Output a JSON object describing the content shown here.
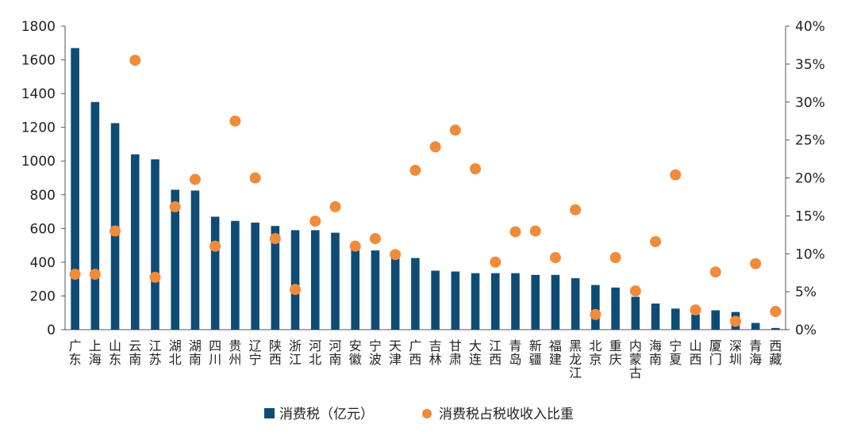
{
  "chart_data": {
    "type": "bar",
    "categories": [
      "广东",
      "上海",
      "山东",
      "云南",
      "江苏",
      "湖北",
      "湖南",
      "四川",
      "贵州",
      "辽宁",
      "陕西",
      "浙江",
      "河北",
      "河南",
      "安徽",
      "宁波",
      "天津",
      "广西",
      "吉林",
      "甘肃",
      "大连",
      "江西",
      "青岛",
      "新疆",
      "福建",
      "黑龙江",
      "北京",
      "重庆",
      "内蒙古",
      "海南",
      "宁夏",
      "山西",
      "厦门",
      "深圳",
      "青海",
      "西藏"
    ],
    "series": [
      {
        "name": "消费税（亿元）",
        "kind": "bar",
        "axis": "left",
        "color": "#0f4c75",
        "values": [
          1670,
          1350,
          1225,
          1040,
          1010,
          830,
          825,
          670,
          645,
          635,
          615,
          590,
          590,
          575,
          490,
          470,
          430,
          425,
          350,
          345,
          335,
          335,
          335,
          325,
          325,
          305,
          265,
          250,
          195,
          155,
          125,
          90,
          115,
          105,
          40,
          10
        ]
      },
      {
        "name": "消费税占税收收入比重",
        "kind": "scatter",
        "axis": "right",
        "color": "#f08b3b",
        "values": [
          7.3,
          7.3,
          13.0,
          35.5,
          6.9,
          16.2,
          19.8,
          11.0,
          27.5,
          20.0,
          12.0,
          5.3,
          14.3,
          16.2,
          11.0,
          12.0,
          9.9,
          21.0,
          24.1,
          26.3,
          21.2,
          8.9,
          12.9,
          13.0,
          9.5,
          15.8,
          2.0,
          9.5,
          5.1,
          11.6,
          20.4,
          2.6,
          7.6,
          1.1,
          8.7,
          2.4
        ]
      }
    ],
    "y_left": {
      "min": 0,
      "max": 1800,
      "ticks": [
        "0",
        "200",
        "400",
        "600",
        "800",
        "1000",
        "1200",
        "1400",
        "1600",
        "1800"
      ]
    },
    "y_right": {
      "min": 0,
      "max": 40,
      "ticks": [
        "0%",
        "5%",
        "10%",
        "15%",
        "20%",
        "25%",
        "30%",
        "35%",
        "40%"
      ]
    },
    "grid": false,
    "legend_position": "bottom"
  }
}
